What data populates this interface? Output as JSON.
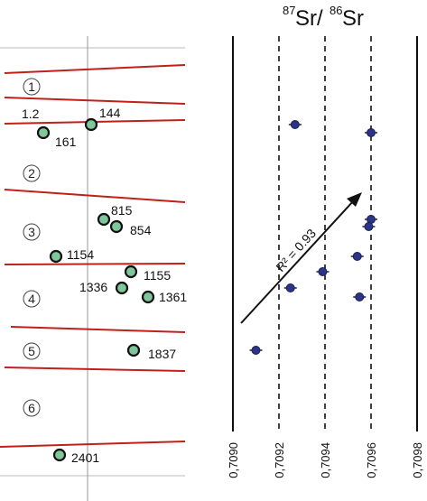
{
  "chart_data": [
    {
      "type": "diagram",
      "panel": "core-log",
      "zones": [
        "1",
        "2",
        "3",
        "4",
        "5",
        "6"
      ],
      "samples": [
        "1.2",
        "144",
        "161",
        "815",
        "854",
        "1154",
        "1155",
        "1336",
        "1361",
        "1837",
        "2401"
      ],
      "colors": {
        "boundary": "#c0201a",
        "sample_fill": "#7fc79a",
        "grid": "#bbbbbb"
      }
    },
    {
      "type": "scatter",
      "title": {
        "main": "Sr/Sr",
        "sup1": "87",
        "sup2": "86"
      },
      "xlabel": "",
      "ylabel": "",
      "xlim": [
        0.709,
        0.7098
      ],
      "x_ticks": [
        "0,7090",
        "0,7092",
        "0,7094",
        "0,7096",
        "0,7098"
      ],
      "x_tick_values": [
        0.709,
        0.7092,
        0.7094,
        0.7096,
        0.7098
      ],
      "solid_lines_at": [
        0.709,
        0.7098
      ],
      "dashed_lines_at": [
        0.7092,
        0.7094,
        0.7096
      ],
      "series": [
        {
          "x": [
            0.70927,
            0.7096,
            0.7096,
            0.70959,
            0.70954,
            0.70939,
            0.70925,
            0.70955,
            0.7091
          ],
          "y_sample": [
            "144",
            "161",
            "815",
            "854",
            "1154",
            "1155",
            "1336",
            "1361",
            "1837"
          ]
        }
      ],
      "annotation": "R² = 0.93",
      "trend_arrow": true,
      "colors": {
        "point": "#2b3486",
        "lines": "#111111"
      }
    }
  ]
}
